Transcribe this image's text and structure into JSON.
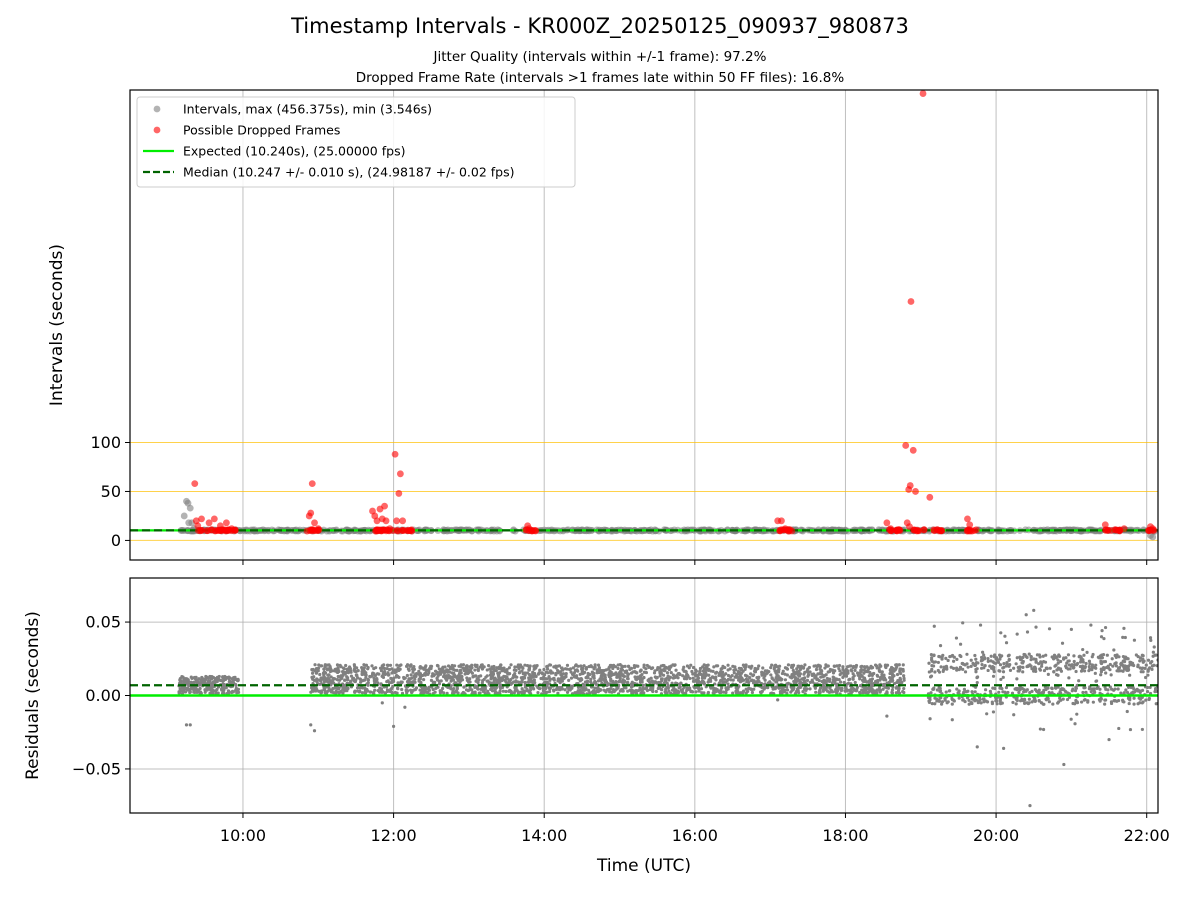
{
  "chart_data": [
    {
      "type": "scatter",
      "title": "Timestamp Intervals - KR000Z_20250125_090937_980873",
      "subtitle_lines": [
        "Jitter Quality (intervals within +/-1 frame): 97.2%",
        "Dropped Frame Rate (intervals >1 frames late within 50 FF files): 16.8%"
      ],
      "xlabel": "",
      "ylabel": "Intervals (seconds)",
      "xlim_hours": [
        8.5,
        22.15
      ],
      "ylim": [
        -20,
        460
      ],
      "x_ticks": [
        10,
        12,
        14,
        16,
        18,
        20,
        22
      ],
      "y_ticks": [
        0,
        50,
        100
      ],
      "y_tick_labels": [
        "0",
        "50",
        "100"
      ],
      "grid": "vertical",
      "threshold_lines": [
        0,
        50,
        100
      ],
      "legend_position": "upper-left",
      "legend": [
        {
          "label": "Intervals, max (456.375s), min (3.546s)",
          "marker": "circle",
          "color": "#808080"
        },
        {
          "label": "Possible Dropped Frames",
          "marker": "circle",
          "color": "#ff0000"
        },
        {
          "label": "Expected (10.240s), (25.00000 fps)",
          "marker": "solid-line",
          "color": "#00ee00"
        },
        {
          "label": "Median (10.247 +/- 0.010 s), (24.98187 +/- 0.02 fps)",
          "marker": "dashed-line",
          "color": "#006400"
        }
      ],
      "expected": 10.24,
      "median": 10.247,
      "series": [
        {
          "name": "Intervals, max (456.375s), min (3.546s)",
          "color": "#808080",
          "points": [
            [
              9.2,
              10.2
            ],
            [
              9.22,
              25
            ],
            [
              9.25,
              40
            ],
            [
              9.27,
              38
            ],
            [
              9.3,
              33
            ],
            [
              9.32,
              18
            ],
            [
              9.28,
              18
            ],
            [
              9.35,
              12
            ],
            [
              9.4,
              10.2
            ],
            [
              9.5,
              10.2
            ],
            [
              9.8,
              10.2
            ],
            [
              10.0,
              10.2
            ],
            [
              10.5,
              10.2
            ],
            [
              11.2,
              10.2
            ],
            [
              12.5,
              10.2
            ],
            [
              14.5,
              10.2
            ],
            [
              16.5,
              10.2
            ],
            [
              18.0,
              10.2
            ],
            [
              19.5,
              10.2
            ],
            [
              20.5,
              10.2
            ],
            [
              21.0,
              10.2
            ],
            [
              21.5,
              10.2
            ],
            [
              22.05,
              5
            ],
            [
              22.08,
              3.5
            ],
            [
              22.1,
              9
            ]
          ]
        },
        {
          "name": "Possible Dropped Frames",
          "color": "#ff0000",
          "points": [
            [
              9.36,
              58
            ],
            [
              9.38,
              20
            ],
            [
              9.45,
              22
            ],
            [
              9.4,
              15
            ],
            [
              9.55,
              18
            ],
            [
              9.62,
              22
            ],
            [
              9.7,
              15
            ],
            [
              9.78,
              18
            ],
            [
              9.85,
              12
            ],
            [
              10.88,
              25
            ],
            [
              10.9,
              28
            ],
            [
              10.92,
              58
            ],
            [
              10.95,
              18
            ],
            [
              11.0,
              12
            ],
            [
              11.72,
              30
            ],
            [
              11.75,
              25
            ],
            [
              11.78,
              20
            ],
            [
              11.82,
              32
            ],
            [
              11.85,
              22
            ],
            [
              11.88,
              35
            ],
            [
              11.9,
              20
            ],
            [
              11.95,
              12
            ],
            [
              12.02,
              88
            ],
            [
              12.04,
              20
            ],
            [
              12.07,
              48
            ],
            [
              12.09,
              68
            ],
            [
              12.12,
              20
            ],
            [
              13.78,
              15
            ],
            [
              13.8,
              12
            ],
            [
              17.1,
              20
            ],
            [
              17.15,
              20
            ],
            [
              17.2,
              12
            ],
            [
              18.55,
              18
            ],
            [
              18.6,
              12
            ],
            [
              18.8,
              97
            ],
            [
              18.82,
              18
            ],
            [
              18.84,
              52
            ],
            [
              18.86,
              56
            ],
            [
              18.87,
              244
            ],
            [
              18.9,
              92
            ],
            [
              18.93,
              50
            ],
            [
              19.03,
              456.375
            ],
            [
              19.12,
              44
            ],
            [
              18.85,
              14
            ],
            [
              19.62,
              22
            ],
            [
              19.65,
              16
            ],
            [
              21.45,
              16
            ],
            [
              21.7,
              12
            ],
            [
              22.05,
              14
            ],
            [
              22.08,
              12
            ]
          ],
          "dense_bands": [
            [
              9.4,
              9.9
            ],
            [
              10.85,
              11.05
            ],
            [
              11.7,
              12.25
            ],
            [
              13.75,
              13.9
            ],
            [
              17.1,
              17.3
            ],
            [
              18.55,
              18.75
            ],
            [
              18.9,
              19.05
            ],
            [
              19.15,
              19.3
            ],
            [
              19.6,
              19.75
            ],
            [
              21.45,
              21.65
            ],
            [
              22.0,
              22.1
            ]
          ],
          "dense_band_value": 10.3
        }
      ]
    },
    {
      "type": "scatter",
      "title": "",
      "xlabel": "Time (UTC)",
      "ylabel": "Residuals (seconds)",
      "xlim_hours": [
        8.5,
        22.15
      ],
      "ylim": [
        -0.08,
        0.08
      ],
      "x_ticks": [
        10,
        12,
        14,
        16,
        18,
        20,
        22
      ],
      "x_tick_labels": [
        "10:00",
        "12:00",
        "14:00",
        "16:00",
        "18:00",
        "20:00",
        "22:00"
      ],
      "y_ticks": [
        -0.05,
        0.0,
        0.05
      ],
      "y_tick_labels": [
        "−0.05",
        "0.00",
        "0.05"
      ],
      "grid": "both",
      "expected_residual": 0.0,
      "median_residual": 0.007,
      "series": [
        {
          "color": "#808080",
          "segments": [
            {
              "x_start": 9.15,
              "x_end": 9.95,
              "center": 0.007,
              "spread": 0.012
            },
            {
              "x_start": 10.9,
              "x_end": 18.8,
              "center": 0.008,
              "spread": 0.009
            },
            {
              "x_start": 19.1,
              "x_end": 22.15,
              "center": 0.012,
              "spread": 0.03
            }
          ],
          "outliers": [
            [
              9.25,
              -0.02
            ],
            [
              9.3,
              -0.02
            ],
            [
              10.9,
              -0.02
            ],
            [
              10.95,
              -0.024
            ],
            [
              11.85,
              -0.005
            ],
            [
              12.0,
              -0.021
            ],
            [
              12.15,
              -0.008
            ],
            [
              17.1,
              -0.003
            ],
            [
              18.55,
              -0.014
            ],
            [
              20.1,
              -0.036
            ],
            [
              20.45,
              -0.075
            ],
            [
              20.5,
              0.058
            ],
            [
              20.4,
              0.055
            ],
            [
              20.9,
              -0.047
            ],
            [
              21.0,
              0.045
            ],
            [
              19.75,
              -0.035
            ],
            [
              21.5,
              -0.03
            ],
            [
              21.4,
              0.04
            ],
            [
              22.1,
              0.033
            ]
          ]
        }
      ]
    }
  ]
}
